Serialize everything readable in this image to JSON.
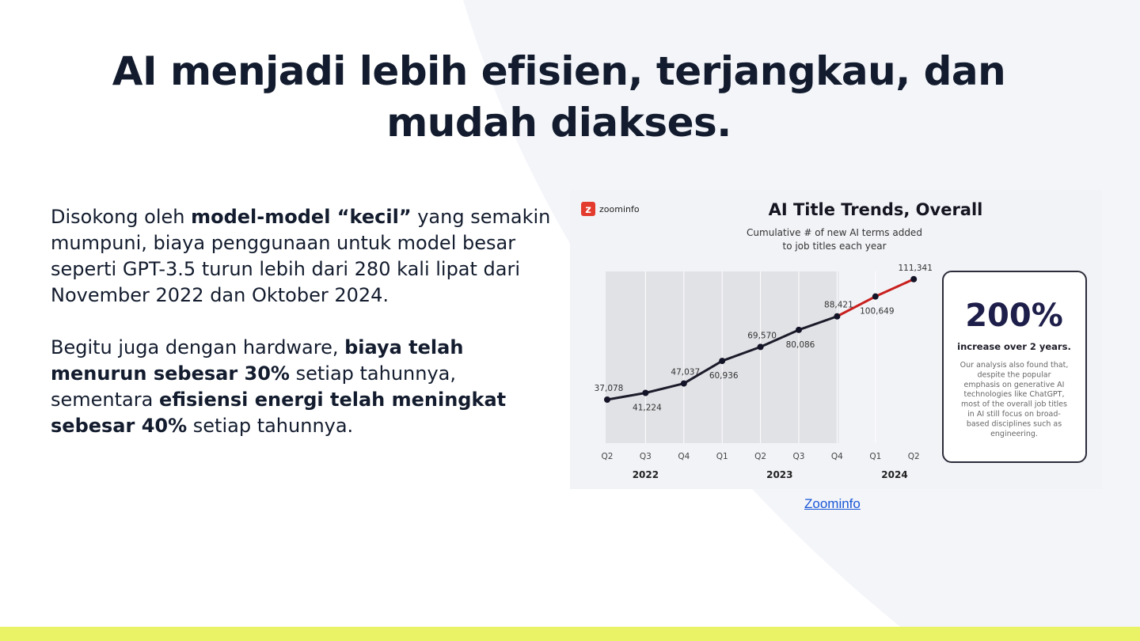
{
  "slide": {
    "title": "AI menjadi lebih efisien, terjangkau, dan mudah diakses.",
    "paragraph1": {
      "t1": "Disokong oleh ",
      "b1": "model-model “kecil”",
      "t2": " yang semakin mumpuni, biaya penggunaan untuk model besar seperti GPT-3.5 turun lebih dari 280 kali lipat dari November 2022 dan Oktober 2024."
    },
    "paragraph2": {
      "t1": "Begitu juga dengan hardware, ",
      "b1": "biaya telah menurun sebesar 30%",
      "t2": " setiap tahunnya, sementara ",
      "b2": "efisiensi energi telah meningkat sebesar 40%",
      "t3": " setiap tahunnya."
    },
    "source_link": "Zoominfo",
    "colors": {
      "accent_bar": "#eaf365",
      "text": "#131c2e",
      "link": "#1a56d6"
    }
  },
  "figure": {
    "logo_text": "zoominfo",
    "logo_color": "#e33b2e",
    "callout": {
      "big_number": "200%",
      "headline": "increase over 2 years.",
      "description_lines": [
        "Our analysis also found that,",
        "despite the popular",
        "emphasis on generative AI",
        "technologies like ChatGPT,",
        "most of the overall job titles",
        "in AI still focus on broad-",
        "based disciplines such as",
        "engineering."
      ]
    }
  },
  "chart_data": {
    "type": "line",
    "title": "AI Title Trends, Overall",
    "subtitle_lines": [
      "Cumulative # of new AI terms added",
      "to job titles each year"
    ],
    "categories": [
      "Q2",
      "Q3",
      "Q4",
      "Q1",
      "Q2",
      "Q3",
      "Q4",
      "Q1",
      "Q2"
    ],
    "year_labels": [
      {
        "label": "2022",
        "from": 0,
        "to": 2
      },
      {
        "label": "2023",
        "from": 3,
        "to": 6
      },
      {
        "label": "2024",
        "from": 7,
        "to": 8
      }
    ],
    "values": [
      37078,
      41224,
      47037,
      60936,
      69570,
      80086,
      88421,
      100649,
      111341
    ],
    "value_labels": [
      "37,078",
      "41,224",
      "47,037",
      "60,936",
      "69,570",
      "80,086",
      "88,421",
      "100,649",
      "111,341"
    ],
    "label_position": [
      "above",
      "below",
      "above",
      "below",
      "above",
      "below",
      "above",
      "below",
      "above"
    ],
    "shaded_until_index": 6,
    "highlight_from_index": 6,
    "ylim": [
      20000,
      120000
    ],
    "grid": false,
    "colors": {
      "line": "#1b1b2a",
      "highlight": "#c8201e",
      "shade": "#e1e2e6"
    }
  }
}
